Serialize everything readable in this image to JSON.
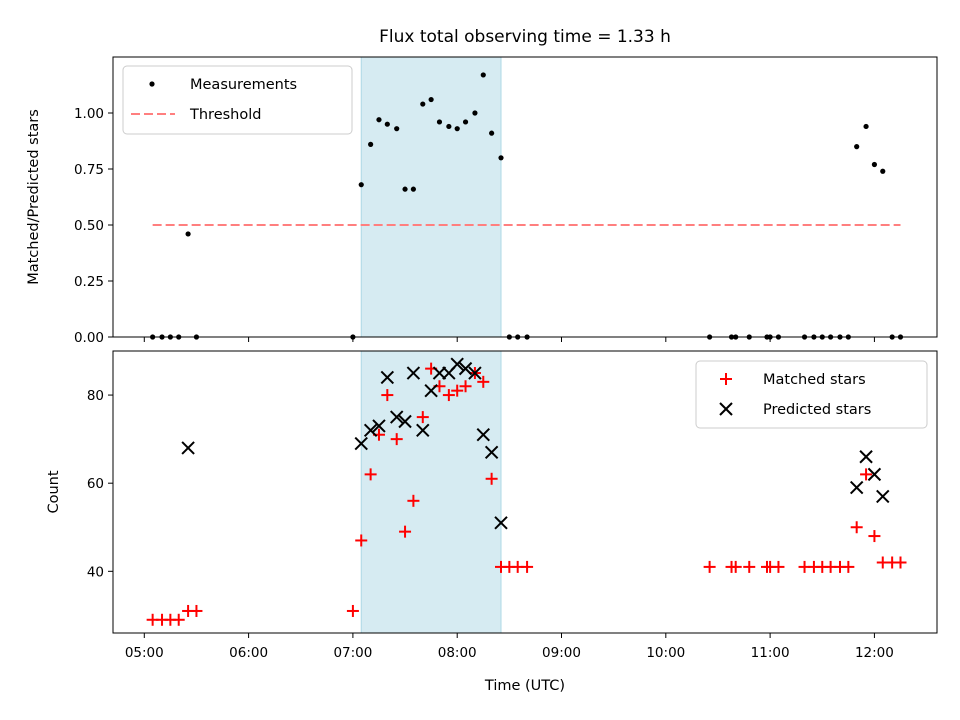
{
  "chart_data": [
    {
      "type": "scatter",
      "title": "Flux total observing time = 1.33 h",
      "xlabel": "",
      "ylabel": "Matched/Predicted stars",
      "xlim": [
        4.7,
        12.6
      ],
      "ylim": [
        0,
        1.25
      ],
      "yticks": [
        0.0,
        0.25,
        0.5,
        0.75,
        1.0
      ],
      "ytick_labels": [
        "0.00",
        "0.25",
        "0.50",
        "0.75",
        "1.00"
      ],
      "shaded_span": [
        7.08,
        8.42
      ],
      "shaded_color": "#add8e6",
      "series": [
        {
          "name": "Measurements",
          "marker": "dot",
          "color": "#000000",
          "x": [
            5.08,
            5.17,
            5.25,
            5.33,
            5.42,
            5.5,
            7.0,
            7.08,
            7.17,
            7.25,
            7.33,
            7.42,
            7.5,
            7.58,
            7.67,
            7.75,
            7.83,
            7.92,
            8.0,
            8.08,
            8.17,
            8.25,
            8.33,
            8.42,
            8.5,
            8.58,
            8.67,
            10.42,
            10.63,
            10.67,
            10.8,
            10.97,
            11.0,
            11.08,
            11.33,
            11.42,
            11.5,
            11.58,
            11.67,
            11.75,
            11.83,
            11.92,
            12.0,
            12.08,
            12.17,
            12.25
          ],
          "y": [
            0,
            0,
            0,
            0,
            0.46,
            0,
            0,
            0.68,
            0.86,
            0.97,
            0.95,
            0.93,
            0.66,
            0.66,
            1.04,
            1.06,
            0.96,
            0.94,
            0.93,
            0.96,
            1.0,
            1.17,
            0.91,
            0.8,
            0,
            0,
            0,
            0,
            0,
            0,
            0,
            0,
            0,
            0,
            0,
            0,
            0,
            0,
            0,
            0,
            0.85,
            0.94,
            0.77,
            0.74,
            0,
            0
          ]
        },
        {
          "name": "Threshold",
          "style": "dashed",
          "color": "#ff7f7f",
          "x": [
            5.08,
            12.25
          ],
          "y": [
            0.5,
            0.5
          ]
        }
      ],
      "legend": "top-left"
    },
    {
      "type": "scatter",
      "title": "",
      "xlabel": "Time (UTC)",
      "ylabel": "Count",
      "xlim": [
        4.7,
        12.6
      ],
      "ylim": [
        26,
        90
      ],
      "yticks": [
        40,
        60,
        80
      ],
      "ytick_labels": [
        "40",
        "60",
        "80"
      ],
      "xticks": [
        5,
        6,
        7,
        8,
        9,
        10,
        11,
        12
      ],
      "xtick_labels": [
        "05:00",
        "06:00",
        "07:00",
        "08:00",
        "09:00",
        "10:00",
        "11:00",
        "12:00"
      ],
      "shaded_span": [
        7.08,
        8.42
      ],
      "shaded_color": "#add8e6",
      "series": [
        {
          "name": "Matched stars",
          "marker": "plus",
          "color": "#ff0000",
          "x": [
            5.08,
            5.17,
            5.25,
            5.33,
            5.42,
            5.5,
            7.0,
            7.08,
            7.17,
            7.25,
            7.33,
            7.42,
            7.5,
            7.58,
            7.67,
            7.75,
            7.83,
            7.92,
            8.0,
            8.08,
            8.17,
            8.25,
            8.33,
            8.42,
            8.5,
            8.58,
            8.67,
            10.42,
            10.63,
            10.67,
            10.8,
            10.97,
            11.0,
            11.08,
            11.33,
            11.42,
            11.5,
            11.58,
            11.67,
            11.75,
            11.83,
            11.92,
            12.0,
            12.08,
            12.17,
            12.25
          ],
          "y": [
            29,
            29,
            29,
            29,
            31,
            31,
            31,
            47,
            62,
            71,
            80,
            70,
            49,
            56,
            75,
            86,
            82,
            80,
            81,
            82,
            85,
            83,
            61,
            41,
            41,
            41,
            41,
            41,
            41,
            41,
            41,
            41,
            41,
            41,
            41,
            41,
            41,
            41,
            41,
            41,
            50,
            62,
            48,
            42,
            42,
            42
          ]
        },
        {
          "name": "Predicted stars",
          "marker": "x",
          "color": "#000000",
          "x": [
            5.42,
            7.08,
            7.17,
            7.25,
            7.33,
            7.42,
            7.5,
            7.58,
            7.67,
            7.75,
            7.83,
            7.92,
            8.0,
            8.08,
            8.17,
            8.25,
            8.33,
            8.42,
            11.83,
            11.92,
            12.0,
            12.08
          ],
          "y": [
            68,
            69,
            72,
            73,
            84,
            75,
            74,
            85,
            72,
            81,
            85,
            85,
            87,
            86,
            85,
            71,
            67,
            51,
            59,
            66,
            62,
            57
          ]
        }
      ],
      "legend": "top-right"
    }
  ]
}
